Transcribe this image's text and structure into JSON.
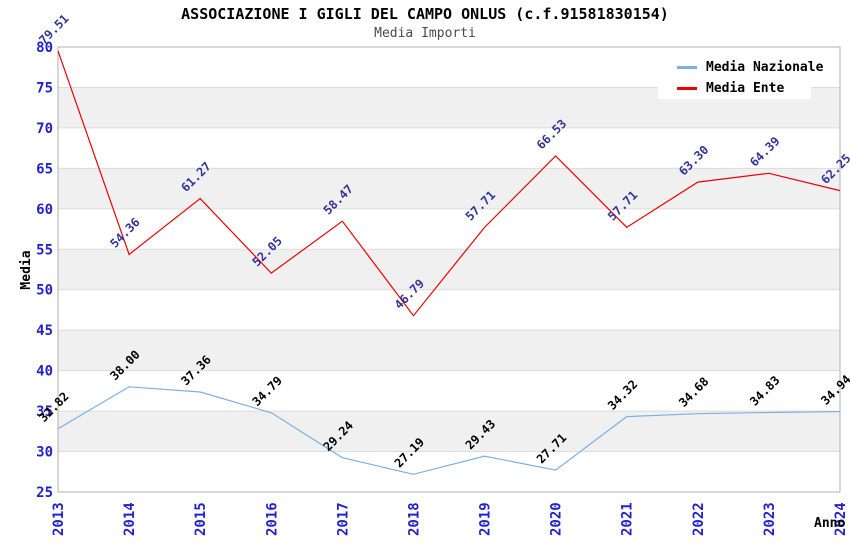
{
  "page": {
    "title": "ASSOCIAZIONE I GIGLI DEL CAMPO ONLUS (c.f.91581830154)",
    "subtitle": "Media Importi"
  },
  "axes": {
    "y_title": "Media",
    "x_title": "Anno",
    "y_ticks": [
      25,
      30,
      35,
      40,
      45,
      50,
      55,
      60,
      65,
      70,
      75,
      80
    ],
    "tick_label_color": "#2222cc",
    "axis_title_color": "#000000"
  },
  "style": {
    "band_fill": "#f0f0f0",
    "gridline_color": "#dcdcdc",
    "border_color": "#b0b0b0",
    "background": "#ffffff"
  },
  "chart_data": {
    "type": "line",
    "title": "ASSOCIAZIONE I GIGLI DEL CAMPO ONLUS (c.f.91581830154)",
    "subtitle": "Media Importi",
    "xlabel": "Anno",
    "ylabel": "Media",
    "ylim": [
      25,
      80
    ],
    "y_tick_step": 5,
    "grid": "horizontal gridlines with alternating gray bands",
    "legend_position": "top-right",
    "x": [
      2013,
      2014,
      2015,
      2016,
      2017,
      2018,
      2019,
      2020,
      2021,
      2022,
      2023,
      2024
    ],
    "series": [
      {
        "name": "Media Nazionale",
        "color": "#7cb1e3",
        "label_color": "#000000",
        "values": [
          32.82,
          38.0,
          37.36,
          34.79,
          29.24,
          27.19,
          29.43,
          27.71,
          34.32,
          34.68,
          34.83,
          34.94
        ]
      },
      {
        "name": "Media Ente",
        "color": "#ee0000",
        "label_color": "#333399",
        "values": [
          79.51,
          54.36,
          61.27,
          52.05,
          58.47,
          46.79,
          57.71,
          66.53,
          57.71,
          63.3,
          64.39,
          62.25
        ]
      }
    ]
  }
}
